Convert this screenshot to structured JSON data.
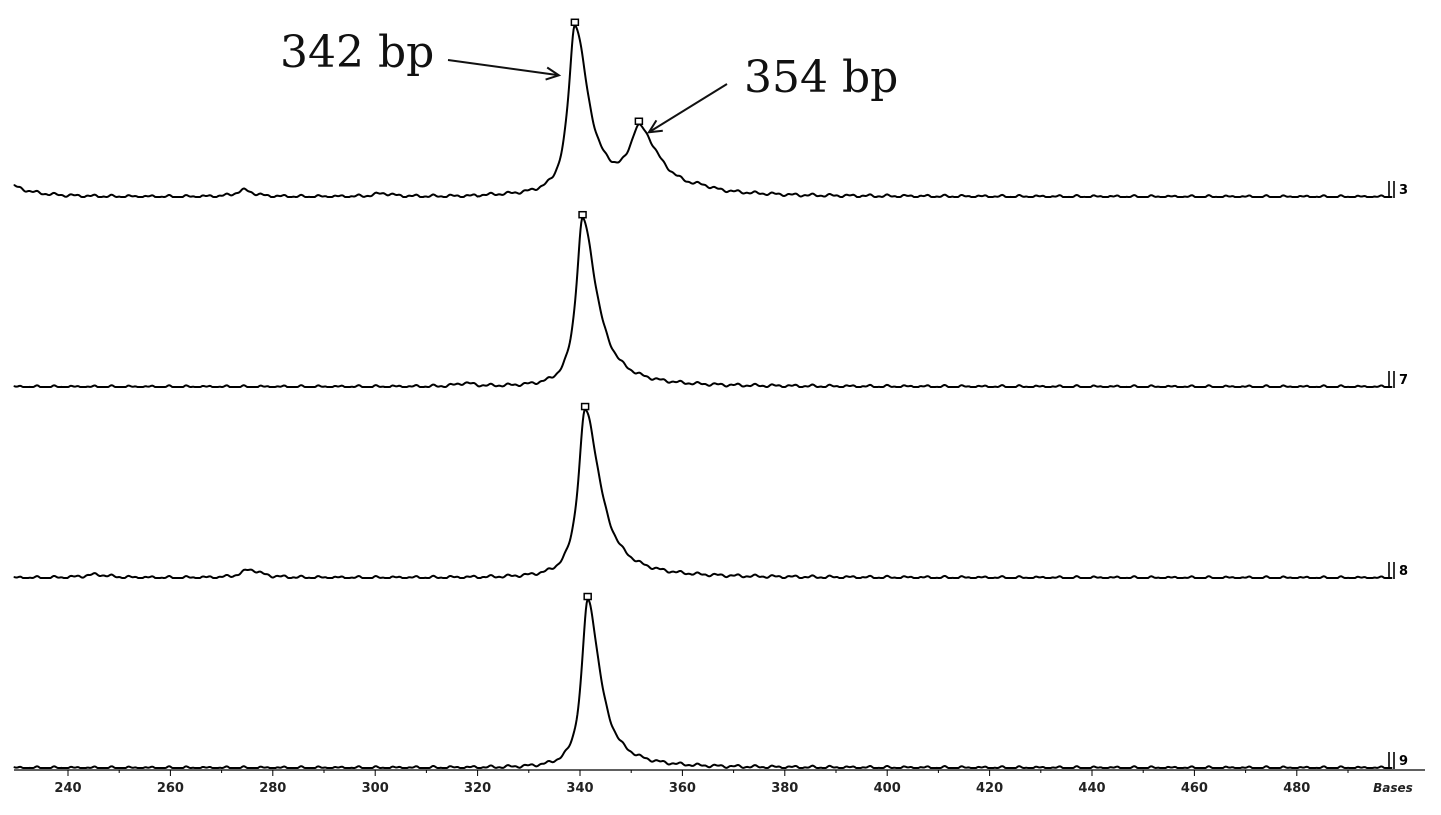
{
  "chart_data": {
    "type": "line",
    "x_unit_label": "Bases",
    "xlim": [
      227,
      492
    ],
    "x_ticks": [
      240,
      260,
      280,
      300,
      320,
      340,
      360,
      380,
      400,
      420,
      440,
      460,
      480
    ],
    "grid": false,
    "legend": "none",
    "annotations": [
      {
        "text": "342 bp",
        "x": 339
      },
      {
        "text": "354 bp",
        "x": 351.5
      }
    ],
    "lanes": [
      {
        "label": "3",
        "peaks": [
          {
            "x": 339,
            "height": 1.0,
            "left_width": 1.5,
            "right_width": 3.0
          },
          {
            "x": 351.5,
            "height": 0.36,
            "left_width": 2.2,
            "right_width": 4.5
          },
          {
            "x": 274.5,
            "height": 0.04,
            "left_width": 2.0,
            "right_width": 2.0
          },
          {
            "x": 301.5,
            "height": 0.02,
            "left_width": 2.0,
            "right_width": 2.0
          },
          {
            "x": 364,
            "height": 0.015,
            "left_width": 2.0,
            "right_width": 2.0
          }
        ],
        "marked_peaks": [
          339,
          351.5
        ]
      },
      {
        "label": "7",
        "peaks": [
          {
            "x": 340.5,
            "height": 1.0,
            "left_width": 1.5,
            "right_width": 3.2
          },
          {
            "x": 317.5,
            "height": 0.02,
            "left_width": 2.0,
            "right_width": 2.0
          }
        ],
        "marked_peaks": [
          340.5
        ]
      },
      {
        "label": "8",
        "peaks": [
          {
            "x": 341,
            "height": 1.0,
            "left_width": 1.6,
            "right_width": 3.4
          },
          {
            "x": 275.5,
            "height": 0.05,
            "left_width": 2.0,
            "right_width": 2.5
          },
          {
            "x": 245.5,
            "height": 0.02,
            "left_width": 3.0,
            "right_width": 3.0
          }
        ],
        "marked_peaks": [
          341
        ]
      },
      {
        "label": "9",
        "peaks": [
          {
            "x": 341.5,
            "height": 1.0,
            "left_width": 1.4,
            "right_width": 2.8
          }
        ],
        "marked_peaks": [
          341.5
        ]
      }
    ]
  }
}
